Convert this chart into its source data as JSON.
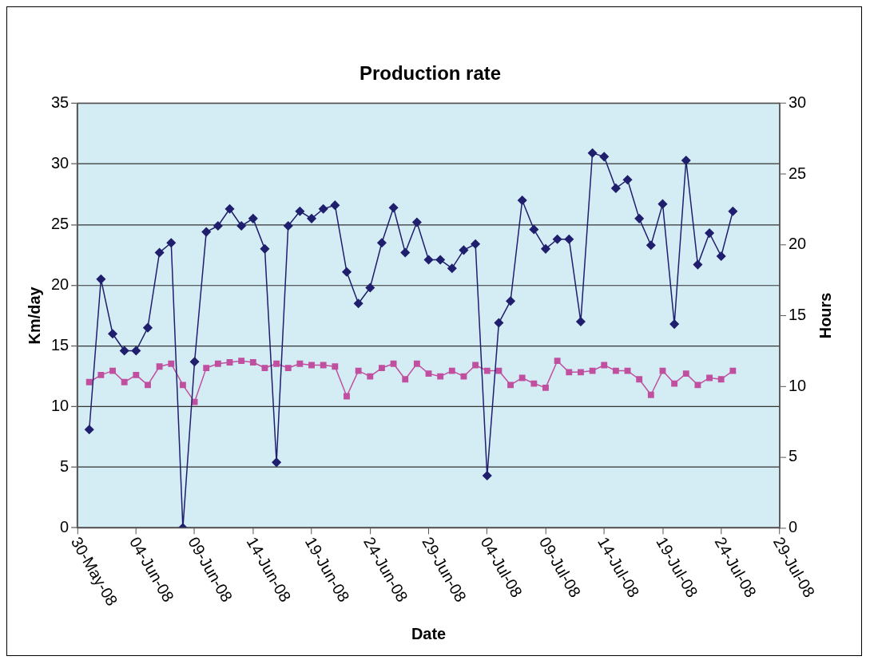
{
  "chart_data": {
    "type": "line",
    "title": "Production rate",
    "xlabel": "Date",
    "ylabel": "Km/day",
    "y2label": "Hours",
    "x": [
      "--05-31",
      "--06-01",
      "--06-02",
      "--06-03",
      "--06-04",
      "--06-05",
      "--06-06",
      "--06-07",
      "--06-08",
      "--06-09",
      "--06-10",
      "--06-11",
      "--06-12",
      "--06-13",
      "--06-14",
      "--06-15",
      "--06-16",
      "--06-17",
      "--06-18",
      "--06-19",
      "--06-20",
      "--06-21",
      "--06-22",
      "--06-23",
      "--06-24",
      "--06-25",
      "--06-26",
      "--06-27",
      "--06-28",
      "--06-29",
      "--06-30",
      "--07-01",
      "--07-02",
      "--07-03",
      "--07-04",
      "--07-05",
      "--07-06",
      "--07-07",
      "--07-08",
      "--07-09",
      "--07-10",
      "--07-11",
      "--07-12",
      "--07-13",
      "--07-14",
      "--07-15",
      "--07-16",
      "--07-17",
      "--07-18",
      "--07-19",
      "--07-20",
      "--07-21",
      "--07-22",
      "--07-23",
      "--07-24",
      "--07-25"
    ],
    "series": [
      {
        "color": "#1f1f6e",
        "marker": "diamond",
        "values": [
          8.1,
          20.5,
          16.0,
          14.6,
          14.6,
          16.5,
          22.7,
          23.5,
          0,
          13.7,
          24.4,
          24.9,
          26.3,
          24.9,
          25.5,
          23.0,
          5.4,
          24.9,
          26.1,
          25.5,
          26.3,
          26.6,
          21.1,
          18.5,
          19.8,
          23.5,
          26.4,
          22.7,
          25.2,
          22.1,
          22.1,
          21.4,
          22.9,
          23.4,
          4.3,
          16.9,
          18.7,
          27.0,
          24.6,
          23.0,
          23.8,
          23.8,
          17.0,
          30.9,
          30.6,
          28.0,
          28.7,
          25.5,
          23.3,
          26.7,
          16.8,
          30.3,
          21.7,
          24.3,
          22.4,
          26.1
        ]
      },
      {
        "color": "#c0509f",
        "marker": "square",
        "axis": "y2",
        "values": [
          10.3,
          10.8,
          11.1,
          10.3,
          10.8,
          10.1,
          11.4,
          11.6,
          10.1,
          8.9,
          11.3,
          11.6,
          11.7,
          11.8,
          11.7,
          11.3,
          11.6,
          11.3,
          11.6,
          11.5,
          11.5,
          11.4,
          9.3,
          11.1,
          10.7,
          11.3,
          11.6,
          10.5,
          11.6,
          10.9,
          10.7,
          11.1,
          10.7,
          11.5,
          11.1,
          11.1,
          10.1,
          10.6,
          10.2,
          9.9,
          11.8,
          11.0,
          11.0,
          11.1,
          11.5,
          11.1,
          11.1,
          10.5,
          9.4,
          11.1,
          10.2,
          10.9,
          10.1,
          10.6,
          10.5,
          11.1
        ]
      }
    ],
    "xlim": [
      "--05-30",
      "--07-29"
    ],
    "xticks": [
      {
        "value": "--05-30",
        "label": "30-May-08"
      },
      {
        "value": "--06-04",
        "label": "04-Jun-08"
      },
      {
        "value": "--06-09",
        "label": "09-Jun-08"
      },
      {
        "value": "--06-14",
        "label": "14-Jun-08"
      },
      {
        "value": "--06-19",
        "label": "19-Jun-08"
      },
      {
        "value": "--06-24",
        "label": "24-Jun-08"
      },
      {
        "value": "--06-29",
        "label": "29-Jun-08"
      },
      {
        "value": "--07-04",
        "label": "04-Jul-08"
      },
      {
        "value": "--07-09",
        "label": "09-Jul-08"
      },
      {
        "value": "--07-14",
        "label": "14-Jul-08"
      },
      {
        "value": "--07-19",
        "label": "19-Jul-08"
      },
      {
        "value": "--07-24",
        "label": "24-Jul-08"
      },
      {
        "value": "--07-29",
        "label": "29-Jul-08"
      }
    ],
    "ylim": [
      0,
      35
    ],
    "yticks": [
      0,
      5,
      10,
      15,
      20,
      25,
      30,
      35
    ],
    "y2lim": [
      0,
      30
    ],
    "y2ticks": [
      0,
      5,
      10,
      15,
      20,
      25,
      30
    ],
    "grid": "y",
    "legend": false
  }
}
